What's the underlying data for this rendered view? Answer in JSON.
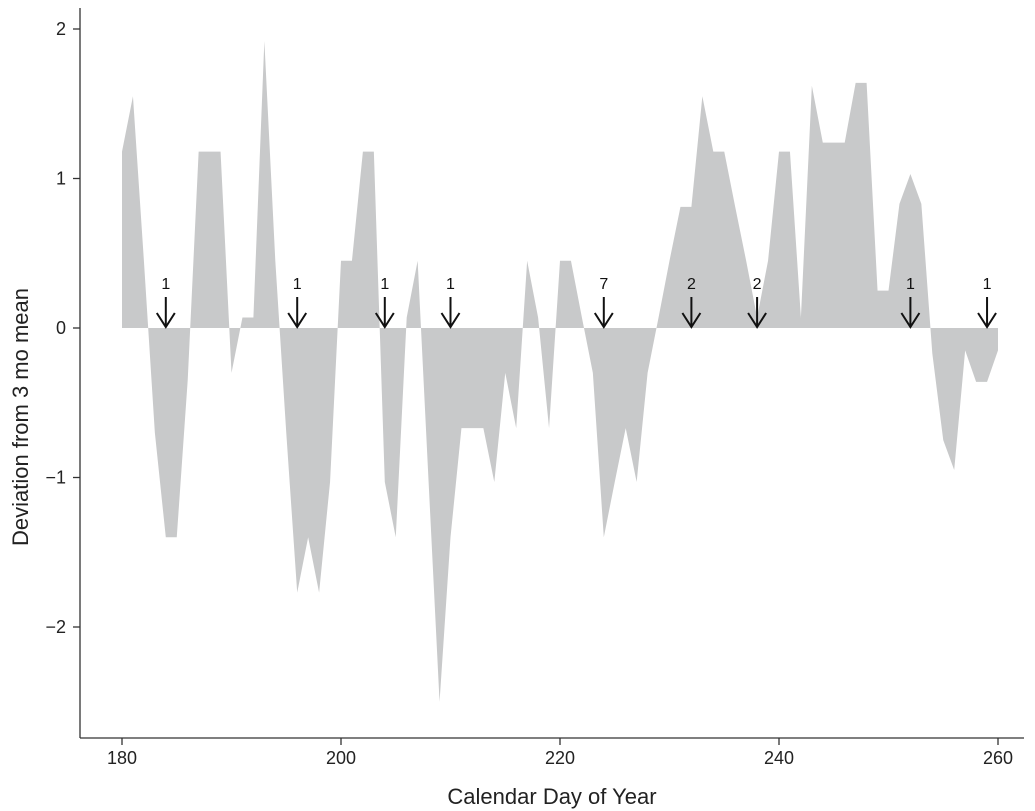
{
  "chart_data": {
    "type": "area",
    "title": "",
    "xlabel": "Calendar Day of Year",
    "ylabel": "Deviation from 3 mo mean",
    "xlim": [
      178,
      262
    ],
    "ylim": [
      -2.7,
      2.15
    ],
    "xticks": [
      180,
      200,
      220,
      240,
      260
    ],
    "yticks": [
      -2,
      -1,
      0,
      1,
      2
    ],
    "ytick_labels": [
      "−2",
      "−1",
      "0",
      "1",
      "2"
    ],
    "grid": false,
    "fill_color": "#c8c9ca",
    "series": [
      {
        "x": [
          180,
          181,
          182,
          183,
          184,
          185,
          186,
          187,
          188,
          189,
          190,
          191,
          192,
          193,
          194,
          195,
          196,
          197,
          198,
          199,
          200,
          201,
          202,
          203,
          204,
          205,
          206,
          207,
          208,
          209,
          210,
          211,
          212,
          213,
          214,
          215,
          216,
          217,
          218,
          219,
          220,
          221,
          222,
          223,
          224,
          225,
          226,
          227,
          228,
          229,
          230,
          231,
          232,
          233,
          234,
          235,
          236,
          237,
          238,
          239,
          240,
          241,
          242,
          243,
          244,
          245,
          246,
          247,
          248,
          249,
          250,
          251,
          252,
          253,
          254,
          255,
          256,
          257,
          258,
          259,
          260
        ],
        "y": [
          1.18,
          1.55,
          0.45,
          -0.7,
          -1.4,
          -1.4,
          -0.35,
          1.18,
          1.18,
          1.18,
          -0.3,
          0.07,
          0.07,
          1.92,
          0.45,
          -0.7,
          -1.77,
          -1.4,
          -1.77,
          -1.03,
          0.45,
          0.45,
          1.18,
          1.18,
          -1.03,
          -1.4,
          0.07,
          0.45,
          -1.03,
          -2.5,
          -1.4,
          -0.67,
          -0.67,
          -0.67,
          -1.03,
          -0.3,
          -0.67,
          0.45,
          0.07,
          -0.67,
          0.45,
          0.45,
          0.07,
          -0.3,
          -1.4,
          -1.03,
          -0.67,
          -1.03,
          -0.3,
          0.07,
          0.45,
          0.81,
          0.81,
          1.55,
          1.18,
          1.18,
          0.81,
          0.45,
          0.07,
          0.45,
          1.18,
          1.18,
          0.07,
          1.62,
          1.24,
          1.24,
          1.24,
          1.64,
          1.64,
          0.25,
          0.25,
          0.83,
          1.03,
          0.83,
          -0.17,
          -0.75,
          -0.95,
          -0.15,
          -0.36,
          -0.36,
          -0.15
        ]
      }
    ],
    "annotations": [
      {
        "x": 184,
        "label": "1"
      },
      {
        "x": 196,
        "label": "1"
      },
      {
        "x": 204,
        "label": "1"
      },
      {
        "x": 210,
        "label": "1"
      },
      {
        "x": 224,
        "label": "7"
      },
      {
        "x": 232,
        "label": "2"
      },
      {
        "x": 238,
        "label": "2"
      },
      {
        "x": 252,
        "label": "1"
      },
      {
        "x": 259,
        "label": "1"
      }
    ]
  }
}
